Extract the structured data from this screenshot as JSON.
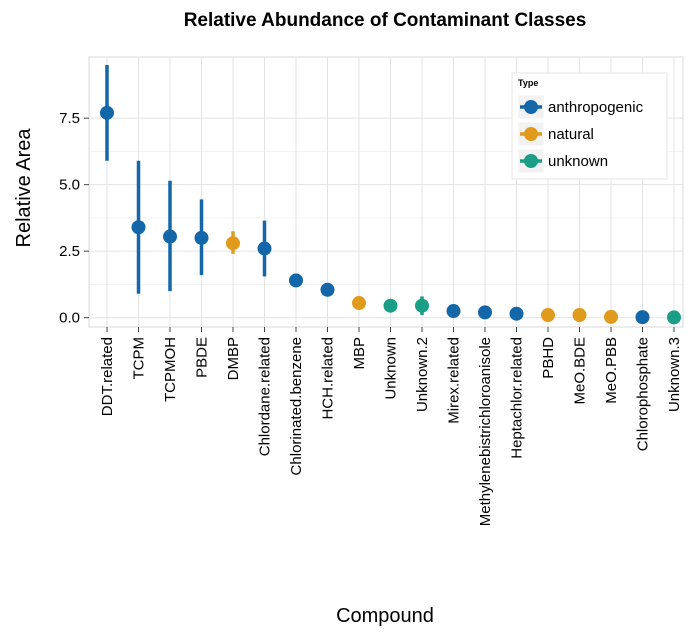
{
  "chart_data": {
    "type": "scatter",
    "title": "Relative Abundance of Contaminant Classes",
    "xlabel": "Compound",
    "ylabel": "Relative Area",
    "ylim": [
      -0.35,
      9.8
    ],
    "yticks": [
      0.0,
      2.5,
      5.0,
      7.5
    ],
    "ytick_labels": [
      "0.0",
      "2.5",
      "5.0",
      "7.5"
    ],
    "grid": true,
    "legend": {
      "title": "Type",
      "position": "top-right",
      "entries": [
        {
          "label": "anthropogenic",
          "color": "#1367a8"
        },
        {
          "label": "natural",
          "color": "#e09a1c"
        },
        {
          "label": "unknown",
          "color": "#1a9e86"
        }
      ]
    },
    "points": [
      {
        "compound": "DDT.related",
        "value": 7.7,
        "lower": 5.9,
        "upper": 9.5,
        "type": "anthropogenic"
      },
      {
        "compound": "TCPM",
        "value": 3.4,
        "lower": 0.9,
        "upper": 5.9,
        "type": "anthropogenic"
      },
      {
        "compound": "TCPMOH",
        "value": 3.05,
        "lower": 1.0,
        "upper": 5.15,
        "type": "anthropogenic"
      },
      {
        "compound": "PBDE",
        "value": 3.0,
        "lower": 1.6,
        "upper": 4.45,
        "type": "anthropogenic"
      },
      {
        "compound": "DMBP",
        "value": 2.8,
        "lower": 2.4,
        "upper": 3.25,
        "type": "natural"
      },
      {
        "compound": "Chlordane.related",
        "value": 2.6,
        "lower": 1.55,
        "upper": 3.65,
        "type": "anthropogenic"
      },
      {
        "compound": "Chlorinated.benzene",
        "value": 1.4,
        "lower": 1.4,
        "upper": 1.4,
        "type": "anthropogenic"
      },
      {
        "compound": "HCH.related",
        "value": 1.05,
        "lower": 1.05,
        "upper": 1.05,
        "type": "anthropogenic"
      },
      {
        "compound": "MBP",
        "value": 0.55,
        "lower": 0.55,
        "upper": 0.55,
        "type": "natural"
      },
      {
        "compound": "Unknown",
        "value": 0.45,
        "lower": 0.45,
        "upper": 0.45,
        "type": "unknown"
      },
      {
        "compound": "Unknown.2",
        "value": 0.45,
        "lower": 0.1,
        "upper": 0.8,
        "type": "unknown"
      },
      {
        "compound": "Mirex.related",
        "value": 0.25,
        "lower": 0.25,
        "upper": 0.25,
        "type": "anthropogenic"
      },
      {
        "compound": "Methylenebistrichloroanisole",
        "value": 0.2,
        "lower": 0.2,
        "upper": 0.2,
        "type": "anthropogenic"
      },
      {
        "compound": "Heptachlor.related",
        "value": 0.15,
        "lower": 0.15,
        "upper": 0.15,
        "type": "anthropogenic"
      },
      {
        "compound": "PBHD",
        "value": 0.1,
        "lower": 0.1,
        "upper": 0.1,
        "type": "natural"
      },
      {
        "compound": "MeO.BDE",
        "value": 0.1,
        "lower": 0.1,
        "upper": 0.1,
        "type": "natural"
      },
      {
        "compound": "MeO.PBB",
        "value": 0.03,
        "lower": 0.03,
        "upper": 0.03,
        "type": "natural"
      },
      {
        "compound": "Chlorophosphate",
        "value": 0.02,
        "lower": 0.02,
        "upper": 0.02,
        "type": "anthropogenic"
      },
      {
        "compound": "Unknown.3",
        "value": 0.01,
        "lower": 0.01,
        "upper": 0.01,
        "type": "unknown"
      }
    ]
  }
}
